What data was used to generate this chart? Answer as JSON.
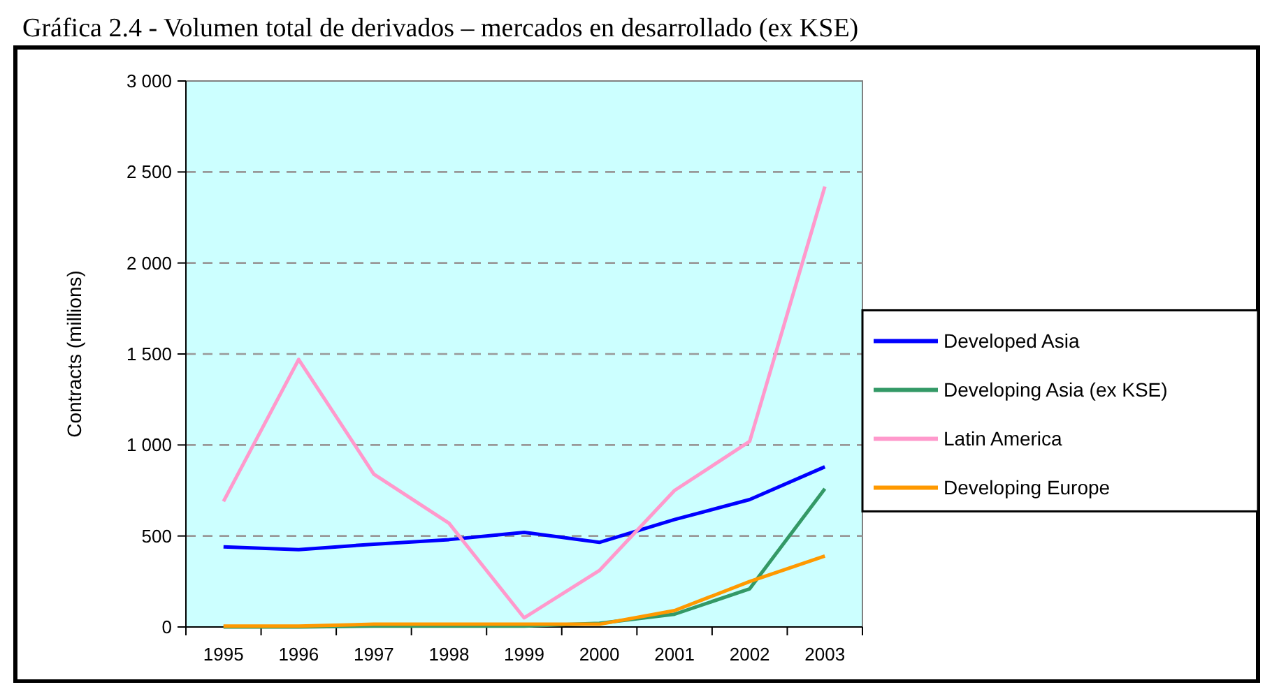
{
  "chart_data": {
    "type": "line",
    "title": "Gráfica 2.4 - Volumen total de derivados – mercados en desarrollado (ex KSE)",
    "ylabel": "Contracts (millions)",
    "categories": [
      "1995",
      "1996",
      "1997",
      "1998",
      "1999",
      "2000",
      "2001",
      "2002",
      "2003"
    ],
    "series": [
      {
        "name": "Developed Asia",
        "color": "#0000ff",
        "values": [
          440,
          425,
          455,
          480,
          520,
          465,
          590,
          700,
          880
        ]
      },
      {
        "name": "Developing Asia  (ex KSE)",
        "color": "#339966",
        "values": [
          0,
          0,
          5,
          5,
          5,
          20,
          70,
          210,
          760
        ]
      },
      {
        "name": "Latin America",
        "color": "#ff99cc",
        "values": [
          690,
          1470,
          840,
          570,
          50,
          310,
          750,
          1020,
          2420
        ]
      },
      {
        "name": "Developing Europe",
        "color": "#ff9900",
        "values": [
          5,
          5,
          15,
          15,
          15,
          15,
          90,
          250,
          390
        ]
      }
    ],
    "ylim": [
      0,
      3000
    ],
    "yticks": [
      0,
      500,
      {
        "value": 1000,
        "label": "1 000"
      },
      {
        "value": 1500,
        "label": "1 500"
      },
      {
        "value": 2000,
        "label": "2 000"
      },
      {
        "value": 2500,
        "label": "2 500"
      },
      {
        "value": 3000,
        "label": "3 000"
      }
    ],
    "grid": "y",
    "legend": "right",
    "marker": "none",
    "line_style": "solid"
  }
}
